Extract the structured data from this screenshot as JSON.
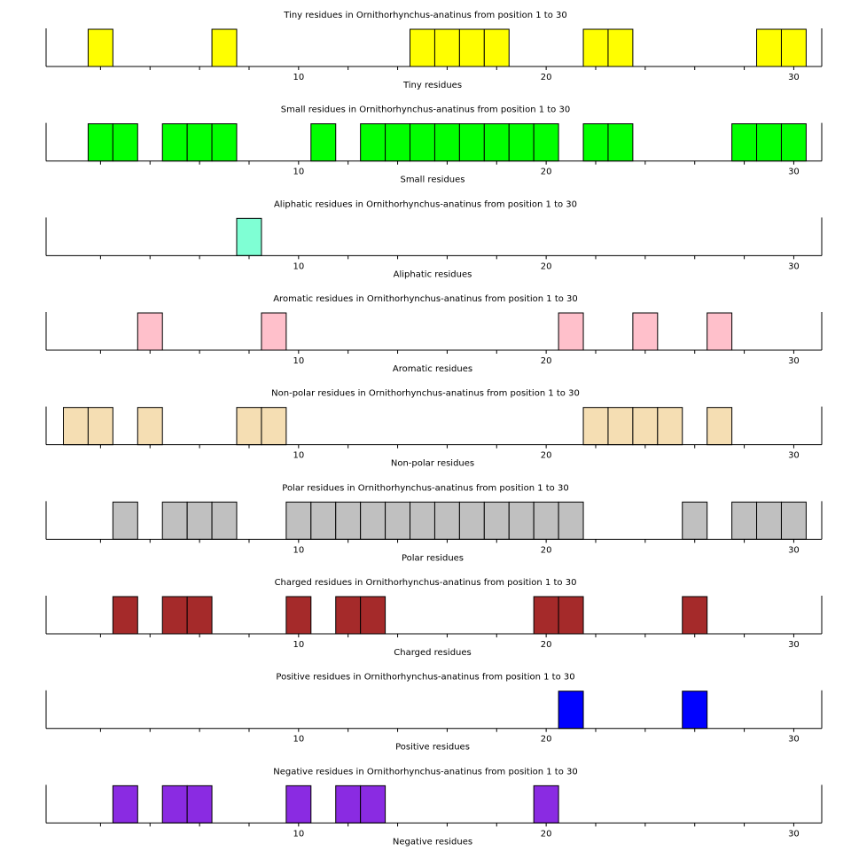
{
  "chart_data": [
    {
      "type": "bar",
      "title": "Tiny residues in Ornithorhynchus-anatinus from position 1 to 30",
      "xlabel": "Tiny residues",
      "color": "#ffff00",
      "xlim": [
        1,
        30
      ],
      "ticks": [
        10,
        20,
        30
      ],
      "positions": [
        2,
        7,
        15,
        16,
        17,
        18,
        22,
        23,
        29,
        30
      ]
    },
    {
      "type": "bar",
      "title": "Small residues in Ornithorhynchus-anatinus from position 1 to 30",
      "xlabel": "Small residues",
      "color": "#00ff00",
      "xlim": [
        1,
        30
      ],
      "ticks": [
        10,
        20,
        30
      ],
      "positions": [
        2,
        3,
        5,
        6,
        7,
        11,
        13,
        14,
        15,
        16,
        17,
        18,
        19,
        20,
        22,
        23,
        28,
        29,
        30
      ]
    },
    {
      "type": "bar",
      "title": "Aliphatic residues in Ornithorhynchus-anatinus from position 1 to 30",
      "xlabel": "Aliphatic residues",
      "color": "#7fffd4",
      "xlim": [
        1,
        30
      ],
      "ticks": [
        10,
        20,
        30
      ],
      "positions": [
        8
      ]
    },
    {
      "type": "bar",
      "title": "Aromatic residues in Ornithorhynchus-anatinus from position 1 to 30",
      "xlabel": "Aromatic residues",
      "color": "#ffc0cb",
      "xlim": [
        1,
        30
      ],
      "ticks": [
        10,
        20,
        30
      ],
      "positions": [
        4,
        9,
        21,
        24,
        27
      ]
    },
    {
      "type": "bar",
      "title": "Non-polar residues in Ornithorhynchus-anatinus from position 1 to 30",
      "xlabel": "Non-polar residues",
      "color": "#f5deb3",
      "xlim": [
        1,
        30
      ],
      "ticks": [
        10,
        20,
        30
      ],
      "positions": [
        1,
        2,
        4,
        8,
        9,
        22,
        23,
        24,
        25,
        27
      ]
    },
    {
      "type": "bar",
      "title": "Polar residues in Ornithorhynchus-anatinus from position 1 to 30",
      "xlabel": "Polar residues",
      "color": "#c0c0c0",
      "xlim": [
        1,
        30
      ],
      "ticks": [
        10,
        20,
        30
      ],
      "positions": [
        3,
        5,
        6,
        7,
        10,
        11,
        12,
        13,
        14,
        15,
        16,
        17,
        18,
        19,
        20,
        21,
        26,
        28,
        29,
        30
      ]
    },
    {
      "type": "bar",
      "title": "Charged residues in Ornithorhynchus-anatinus from position 1 to 30",
      "xlabel": "Charged residues",
      "color": "#a52a2a",
      "xlim": [
        1,
        30
      ],
      "ticks": [
        10,
        20,
        30
      ],
      "positions": [
        3,
        5,
        6,
        10,
        12,
        13,
        20,
        21,
        26
      ]
    },
    {
      "type": "bar",
      "title": "Positive residues in Ornithorhynchus-anatinus from position 1 to 30",
      "xlabel": "Positive residues",
      "color": "#0000ff",
      "xlim": [
        1,
        30
      ],
      "ticks": [
        10,
        20,
        30
      ],
      "positions": [
        21,
        26
      ]
    },
    {
      "type": "bar",
      "title": "Negative residues in Ornithorhynchus-anatinus from position 1 to 30",
      "xlabel": "Negative residues",
      "color": "#8a2be2",
      "xlim": [
        1,
        30
      ],
      "ticks": [
        10,
        20,
        30
      ],
      "positions": [
        3,
        5,
        6,
        10,
        12,
        13,
        20
      ]
    }
  ]
}
